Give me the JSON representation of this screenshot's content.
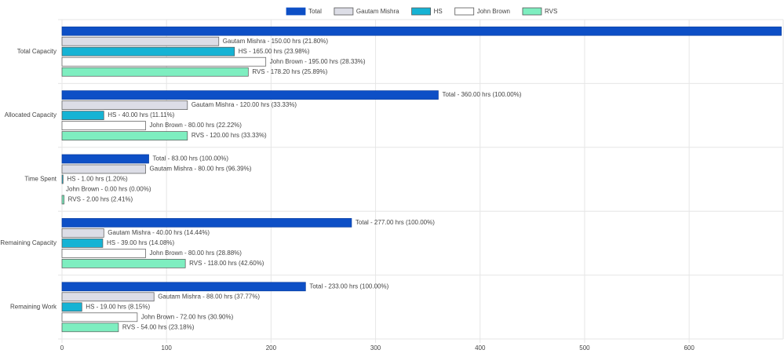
{
  "chart_data": {
    "type": "hbar",
    "categories": [
      "Total Capacity",
      "Allocated Capacity",
      "Time Spent",
      "Remaining Capacity",
      "Remaining Work"
    ],
    "series": [
      {
        "name": "Total",
        "color": "#0d4fc6",
        "values": [
          688.2,
          360,
          83,
          277,
          233
        ],
        "value_labels": [
          null,
          "Total - 360.00 hrs (100.00%)",
          "Total - 83.00 hrs (100.00%)",
          "Total - 277.00 hrs (100.00%)",
          "Total - 233.00 hrs (100.00%)"
        ]
      },
      {
        "name": "Gautam Mishra",
        "color": "#dcdde6",
        "values": [
          150,
          120,
          80,
          40,
          88
        ],
        "value_labels": [
          "Gautam Mishra - 150.00 hrs (21.80%)",
          "Gautam Mishra - 120.00 hrs (33.33%)",
          "Gautam Mishra - 80.00 hrs (96.39%)",
          "Gautam Mishra - 40.00 hrs (14.44%)",
          "Gautam Mishra - 88.00 hrs (37.77%)"
        ]
      },
      {
        "name": "HS",
        "color": "#16b3d4",
        "values": [
          165,
          40,
          1,
          39,
          19
        ],
        "value_labels": [
          "HS - 165.00 hrs (23.98%)",
          "HS - 40.00 hrs (11.11%)",
          "HS - 1.00 hrs (1.20%)",
          "HS - 39.00 hrs (14.08%)",
          "HS - 19.00 hrs (8.15%)"
        ]
      },
      {
        "name": "John Brown",
        "color": "#ffffff",
        "values": [
          195,
          80,
          0,
          80,
          72
        ],
        "value_labels": [
          "John Brown - 195.00 hrs (28.33%)",
          "John Brown - 80.00 hrs (22.22%)",
          "John Brown - 0.00 hrs (0.00%)",
          "John Brown - 80.00 hrs (28.88%)",
          "John Brown - 72.00 hrs (30.90%)"
        ]
      },
      {
        "name": "RVS",
        "color": "#7eeec0",
        "values": [
          178.2,
          120,
          2,
          118,
          54
        ],
        "value_labels": [
          "RVS - 178.20 hrs (25.89%)",
          "RVS - 120.00 hrs (33.33%)",
          "RVS - 2.00 hrs (2.41%)",
          "RVS - 118.00 hrs (42.60%)",
          "RVS - 54.00 hrs (23.18%)"
        ]
      }
    ],
    "xlim": [
      0,
      690
    ],
    "xticks": [
      0,
      100,
      200,
      300,
      400,
      500,
      600
    ],
    "grid": true,
    "legend": "top"
  }
}
